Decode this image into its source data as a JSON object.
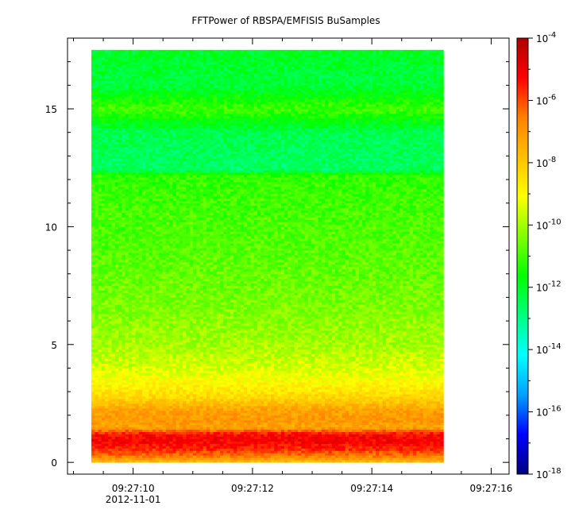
{
  "chart_data": {
    "type": "heatmap",
    "title": "FFTPower of RBSPA/EMFISIS  BuSamples",
    "xlabel": "",
    "ylabel": "",
    "x_date": "2012-11-01",
    "x_range": [
      "09:27:08.9",
      "09:27:16.3"
    ],
    "x_ticks": [
      "09:27:10",
      "09:27:12",
      "09:27:14",
      "09:27:16"
    ],
    "x_first_tick_date_label": "2012-11-01",
    "y_range": [
      -0.5,
      18.0
    ],
    "y_ticks": [
      0,
      5,
      10,
      15
    ],
    "data_extent": {
      "x": [
        "09:27:09.3",
        "09:27:15.2"
      ],
      "y": [
        0.0,
        17.5
      ]
    },
    "colorbar": {
      "scale": "log",
      "range": [
        1e-18,
        0.0001
      ],
      "tick_base": "10",
      "tick_exponents": [
        "-4",
        "-6",
        "-8",
        "-10",
        "-12",
        "-14",
        "-16",
        "-18"
      ],
      "colormap": [
        "#000080",
        "#0000ff",
        "#00a0ff",
        "#00ffff",
        "#00ff80",
        "#00ff00",
        "#80ff00",
        "#ffff00",
        "#ffc000",
        "#ff8000",
        "#ff0000",
        "#b00000"
      ]
    },
    "frequency_profile": [
      {
        "y": 0.0,
        "log_power": -7.9
      },
      {
        "y": 0.3,
        "log_power": -6.4
      },
      {
        "y": 0.6,
        "log_power": -5.6
      },
      {
        "y": 0.9,
        "log_power": -5.1
      },
      {
        "y": 1.2,
        "log_power": -5.3
      },
      {
        "y": 1.5,
        "log_power": -7.3
      },
      {
        "y": 1.8,
        "log_power": -7.0
      },
      {
        "y": 2.2,
        "log_power": -7.2
      },
      {
        "y": 2.7,
        "log_power": -8.2
      },
      {
        "y": 3.3,
        "log_power": -8.9
      },
      {
        "y": 4.0,
        "log_power": -9.5
      },
      {
        "y": 5.0,
        "log_power": -10.0
      },
      {
        "y": 7.0,
        "log_power": -10.5
      },
      {
        "y": 9.0,
        "log_power": -10.8
      },
      {
        "y": 11.0,
        "log_power": -11.0
      },
      {
        "y": 12.2,
        "log_power": -11.2
      },
      {
        "y": 12.4,
        "log_power": -12.6
      },
      {
        "y": 14.0,
        "log_power": -12.4
      },
      {
        "y": 15.0,
        "log_power": -11.0
      },
      {
        "y": 16.0,
        "log_power": -12.2
      },
      {
        "y": 17.5,
        "log_power": -12.0
      }
    ]
  }
}
